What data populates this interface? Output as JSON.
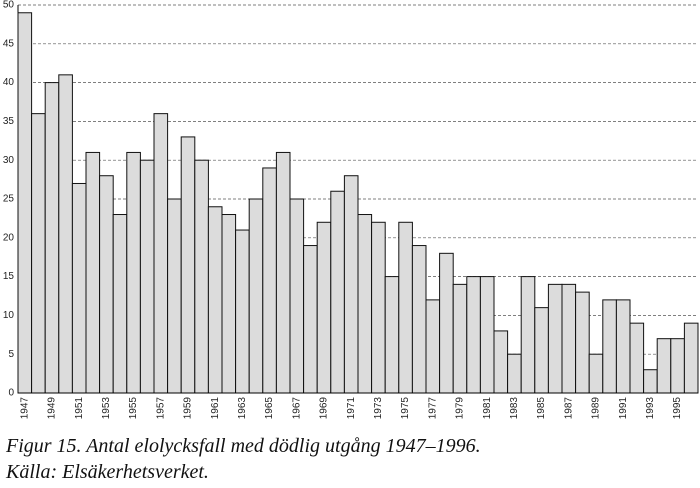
{
  "chart_data": {
    "type": "bar",
    "caption": "Figur 15. Antal elolycksfall med dödlig utgång 1947–1996.",
    "source": "Källa: Elsäkerhetsverket.",
    "categories": [
      "1947",
      null,
      "1949",
      null,
      "1951",
      null,
      "1953",
      null,
      "1955",
      null,
      "1957",
      null,
      "1959",
      null,
      "1961",
      null,
      "1963",
      null,
      "1965",
      null,
      "1967",
      null,
      "1969",
      null,
      "1971",
      null,
      "1973",
      null,
      "1975",
      null,
      "1977",
      null,
      "1979",
      null,
      "1981",
      null,
      "1983",
      null,
      "1985",
      null,
      "1987",
      null,
      "1989",
      null,
      "1991",
      null,
      "1993",
      null,
      "1995",
      null
    ],
    "values": [
      49,
      36,
      40,
      41,
      27,
      31,
      28,
      23,
      31,
      30,
      36,
      25,
      33,
      30,
      24,
      23,
      21,
      25,
      29,
      31,
      25,
      19,
      22,
      26,
      28,
      23,
      22,
      15,
      22,
      19,
      12,
      18,
      14,
      15,
      15,
      8,
      5,
      15,
      11,
      14,
      14,
      13,
      5,
      12,
      12,
      9,
      3,
      7,
      7,
      9
    ],
    "color": "#dcdcdc",
    "ylim": [
      0,
      50
    ],
    "yticks": [
      0,
      5,
      10,
      15,
      20,
      25,
      30,
      35,
      40,
      45,
      50
    ],
    "grid": true
  }
}
